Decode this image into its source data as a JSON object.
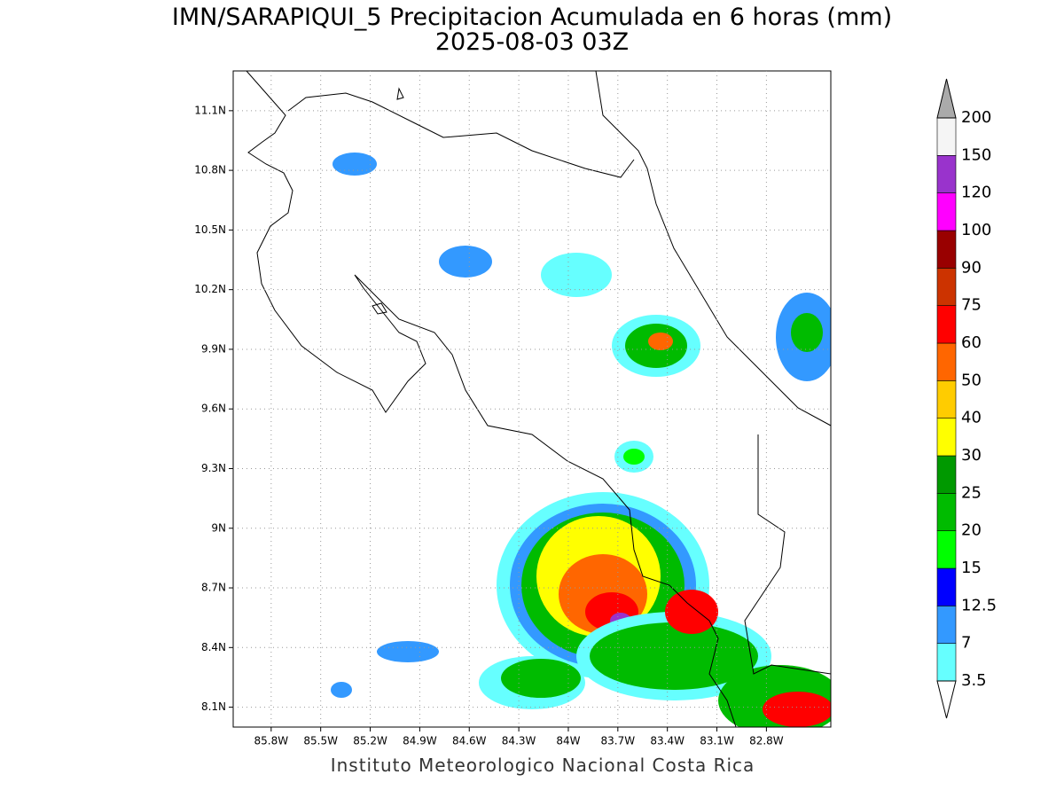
{
  "title": "IMN/SARAPIQUI_5 Precipitacion Acumulada en 6 horas (mm)",
  "subtitle": "2025-08-03 03Z",
  "footer": "Instituto Meteorologico Nacional Costa Rica",
  "map": {
    "xlim": [
      -86.03,
      -82.41
    ],
    "ylim": [
      8.0,
      11.3
    ],
    "grid": true,
    "xticks": [
      {
        "value": -85.8,
        "label": "85.8W"
      },
      {
        "value": -85.5,
        "label": "85.5W"
      },
      {
        "value": -85.2,
        "label": "85.2W"
      },
      {
        "value": -84.9,
        "label": "84.9W"
      },
      {
        "value": -84.6,
        "label": "84.6W"
      },
      {
        "value": -84.3,
        "label": "84.3W"
      },
      {
        "value": -84.0,
        "label": "84W"
      },
      {
        "value": -83.7,
        "label": "83.7W"
      },
      {
        "value": -83.4,
        "label": "83.4W"
      },
      {
        "value": -83.1,
        "label": "83.1W"
      },
      {
        "value": -82.8,
        "label": "82.8W"
      }
    ],
    "yticks": [
      {
        "value": 8.1,
        "label": "8.1N"
      },
      {
        "value": 8.4,
        "label": "8.4N"
      },
      {
        "value": 8.7,
        "label": "8.7N"
      },
      {
        "value": 9.0,
        "label": "9N"
      },
      {
        "value": 9.3,
        "label": "9.3N"
      },
      {
        "value": 9.6,
        "label": "9.6N"
      },
      {
        "value": 9.9,
        "label": "9.9N"
      },
      {
        "value": 10.2,
        "label": "10.2N"
      },
      {
        "value": 10.5,
        "label": "10.5N"
      },
      {
        "value": 10.8,
        "label": "10.8N"
      },
      {
        "value": 11.1,
        "label": "11.1N"
      }
    ]
  },
  "colorbar": {
    "levels": [
      3.5,
      7,
      12.5,
      15,
      20,
      25,
      30,
      40,
      50,
      60,
      75,
      90,
      100,
      120,
      150,
      200
    ],
    "colors": [
      "#66ffff",
      "#3399ff",
      "#0000ff",
      "#00ff00",
      "#00bb00",
      "#009900",
      "#ffff00",
      "#ffcc00",
      "#ff6600",
      "#ff0000",
      "#cc3300",
      "#990000",
      "#ff00ff",
      "#9933cc",
      "#f5f5f5"
    ],
    "over_color": "#aaaaaa",
    "under_color": "#ffffff"
  }
}
